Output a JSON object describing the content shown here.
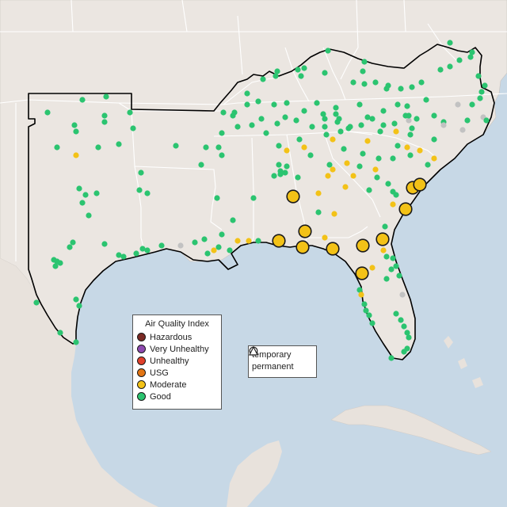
{
  "legend": {
    "title": "Air Quality Index",
    "categories": [
      {
        "label": "Hazardous",
        "color": "#7a2a24",
        "icon": "hazardous-dot"
      },
      {
        "label": "Very Unhealthy",
        "color": "#8e4ab0",
        "icon": "very-unhealthy-dot"
      },
      {
        "label": "Unhealthy",
        "color": "#e0402b",
        "icon": "unhealthy-dot"
      },
      {
        "label": "USG",
        "color": "#e27514",
        "icon": "usg-dot"
      },
      {
        "label": "Moderate",
        "color": "#f3c217",
        "icon": "moderate-dot"
      },
      {
        "label": "Good",
        "color": "#2bc470",
        "icon": "good-dot"
      }
    ]
  },
  "monitor_types": {
    "temporary": {
      "label": "temporary",
      "icon": "circle-icon"
    },
    "permanent": {
      "label": "permanent",
      "icon": "triangle-icon"
    }
  },
  "colors": {
    "water": "#c7d8e6",
    "land": "#ebe6e1",
    "border": "#ffffff",
    "outline": "#000000",
    "no_data": "#c2c2c2"
  }
}
